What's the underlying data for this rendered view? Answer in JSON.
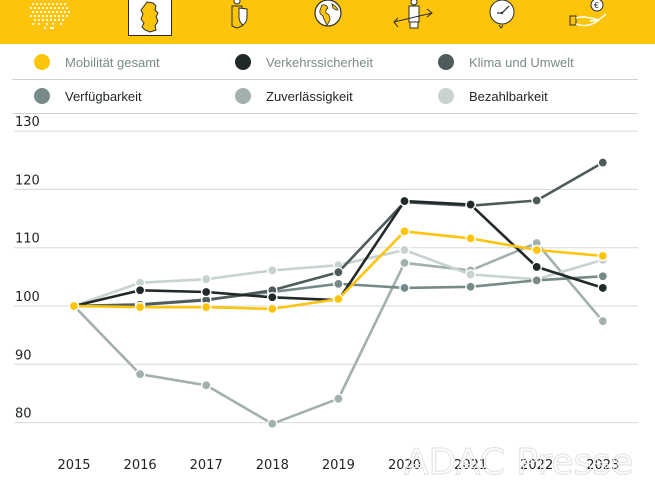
{
  "header": {
    "background": "#fcc50c",
    "icons": [
      {
        "name": "europe-map-icon"
      },
      {
        "name": "germany-map-icon",
        "selected": true
      },
      {
        "name": "person-shield-icon"
      },
      {
        "name": "globe-icon"
      },
      {
        "name": "person-arrows-icon"
      },
      {
        "name": "clock-icon"
      },
      {
        "name": "hand-euro-icon"
      }
    ]
  },
  "legend": {
    "items": [
      {
        "label": "Mobilität gesamt",
        "color": "#fcc50c"
      },
      {
        "label": "Verkehrssicherheit",
        "color": "#22292b"
      },
      {
        "label": "Klima und Umwelt",
        "color": "#4d5b5c"
      },
      {
        "label": "Verfügbarkeit",
        "color": "#768a8a"
      },
      {
        "label": "Zuverlässigkeit",
        "color": "#a2b0af"
      },
      {
        "label": "Bezahlbarkeit",
        "color": "#c8d2d0"
      }
    ]
  },
  "watermark": "ADAC Presse",
  "chart_data": {
    "type": "line",
    "title": "",
    "xlabel": "",
    "ylabel": "",
    "x": [
      "2015",
      "2016",
      "2017",
      "2018",
      "2019",
      "2020",
      "2021",
      "2022",
      "2023"
    ],
    "yticks": [
      80,
      90,
      100,
      110,
      120,
      130
    ],
    "ylim": [
      75,
      132
    ],
    "grid": true,
    "legend_position": "top",
    "series": [
      {
        "name": "Zuverlässigkeit",
        "color": "#a2b0af",
        "values": [
          100,
          88.3,
          86.4,
          79.8,
          84.1,
          107.4,
          106.1,
          110.8,
          97.4
        ]
      },
      {
        "name": "Bezahlbarkeit",
        "color": "#c8d2d0",
        "values": [
          100,
          104.0,
          104.6,
          106.1,
          107.0,
          109.6,
          105.4,
          104.6,
          107.9
        ]
      },
      {
        "name": "Verfügbarkeit",
        "color": "#768a8a",
        "values": [
          100,
          100.3,
          101.1,
          102.4,
          103.8,
          103.1,
          103.3,
          104.4,
          105.1
        ]
      },
      {
        "name": "Klima und Umwelt",
        "color": "#4d5b5c",
        "values": [
          100,
          100.2,
          101.0,
          102.7,
          105.8,
          117.8,
          117.2,
          118.1,
          124.6
        ]
      },
      {
        "name": "Verkehrssicherheit",
        "color": "#22292b",
        "values": [
          100,
          102.7,
          102.4,
          101.5,
          101.0,
          118.0,
          117.4,
          106.7,
          103.1
        ]
      },
      {
        "name": "Mobilität gesamt",
        "color": "#fcc50c",
        "values": [
          100,
          99.8,
          99.8,
          99.5,
          101.2,
          112.8,
          111.6,
          109.6,
          108.6
        ]
      }
    ]
  }
}
